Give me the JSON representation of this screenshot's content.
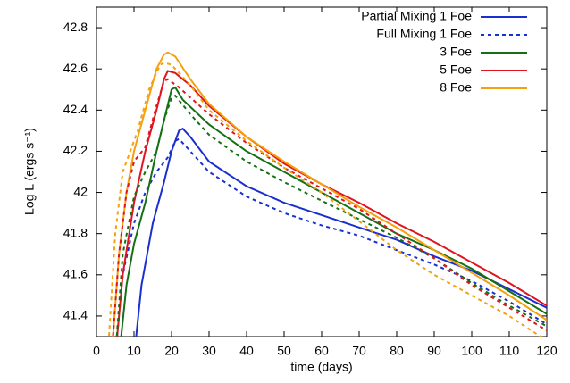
{
  "chart_data": {
    "type": "line",
    "xlabel": "time (days)",
    "ylabel": "Log L (ergs s⁻¹)",
    "xlim": [
      0,
      120
    ],
    "xticks": [
      0,
      10,
      20,
      30,
      40,
      50,
      60,
      70,
      80,
      90,
      100,
      110,
      120
    ],
    "ylim": [
      41.3,
      42.9
    ],
    "yticks": [
      41.4,
      41.6,
      41.8,
      42,
      42.2,
      42.4,
      42.6,
      42.8
    ],
    "legend": "top-right",
    "series": [
      {
        "name": "Partial Mixing 1 Foe",
        "color": "#1a2fd0",
        "dash": false,
        "x": [
          10,
          12,
          15,
          18,
          20,
          22,
          23,
          25,
          30,
          40,
          50,
          60,
          70,
          80,
          90,
          100,
          110,
          120
        ],
        "values": [
          41.2,
          41.55,
          41.85,
          42.05,
          42.2,
          42.3,
          42.31,
          42.27,
          42.15,
          42.03,
          41.95,
          41.89,
          41.83,
          41.77,
          41.69,
          41.62,
          41.53,
          41.44
        ]
      },
      {
        "name": "Full Mixing 1 Foe",
        "color": "#1a2fd0",
        "dash": true,
        "x": [
          5,
          7,
          10,
          13,
          16,
          19,
          21,
          22,
          25,
          30,
          40,
          50,
          60,
          70,
          80,
          90,
          100,
          110,
          120
        ],
        "values": [
          41.2,
          41.6,
          41.85,
          42.0,
          42.1,
          42.17,
          42.25,
          42.26,
          42.2,
          42.1,
          41.98,
          41.9,
          41.84,
          41.79,
          41.72,
          41.65,
          41.57,
          41.47,
          41.36
        ]
      },
      {
        "name": "3 Foe",
        "color": "#157015",
        "dash": false,
        "x": [
          6,
          8,
          10,
          13,
          16,
          18,
          20,
          21,
          23,
          30,
          40,
          50,
          60,
          70,
          80,
          90,
          100,
          110,
          120
        ],
        "values": [
          41.2,
          41.55,
          41.75,
          41.95,
          42.2,
          42.35,
          42.5,
          42.51,
          42.45,
          42.33,
          42.2,
          42.1,
          42.0,
          41.9,
          41.8,
          41.72,
          41.63,
          41.52,
          41.41
        ]
      },
      {
        "name": "5 Foe",
        "color": "#e0141e",
        "dash": false,
        "x": [
          5,
          7,
          10,
          13,
          16,
          18,
          19,
          21,
          25,
          30,
          40,
          50,
          60,
          70,
          80,
          90,
          100,
          110,
          120
        ],
        "values": [
          41.2,
          41.6,
          41.95,
          42.2,
          42.4,
          42.55,
          42.59,
          42.58,
          42.52,
          42.42,
          42.27,
          42.14,
          42.04,
          41.95,
          41.85,
          41.76,
          41.66,
          41.56,
          41.45
        ]
      },
      {
        "name": "8 Foe",
        "color": "#f5a10c",
        "dash": false,
        "x": [
          4,
          6,
          8,
          10,
          13,
          16,
          18,
          19,
          21,
          25,
          30,
          40,
          50,
          60,
          70,
          80,
          90,
          100,
          110,
          120
        ],
        "values": [
          41.2,
          41.7,
          42.0,
          42.2,
          42.4,
          42.6,
          42.67,
          42.68,
          42.66,
          42.55,
          42.43,
          42.27,
          42.15,
          42.04,
          41.93,
          41.83,
          41.72,
          41.61,
          41.5,
          41.38
        ]
      },
      {
        "color": "#157015",
        "dash": true,
        "x": [
          5,
          7,
          10,
          13,
          16,
          18,
          20,
          21,
          25,
          30,
          40,
          50,
          60,
          70,
          80,
          90,
          100,
          110,
          120
        ],
        "values": [
          41.2,
          41.7,
          41.98,
          42.1,
          42.2,
          42.35,
          42.46,
          42.47,
          42.38,
          42.28,
          42.15,
          42.05,
          41.96,
          41.87,
          41.78,
          41.68,
          41.56,
          41.45,
          41.35
        ]
      },
      {
        "color": "#e0141e",
        "dash": true,
        "x": [
          4,
          6,
          8,
          10,
          13,
          16,
          18,
          19,
          22,
          30,
          40,
          50,
          60,
          70,
          80,
          90,
          100,
          110,
          120
        ],
        "values": [
          41.2,
          41.7,
          42.0,
          42.15,
          42.22,
          42.42,
          42.54,
          42.55,
          42.51,
          42.38,
          42.24,
          42.12,
          42.02,
          41.92,
          41.8,
          41.68,
          41.55,
          41.44,
          41.33
        ]
      },
      {
        "color": "#f5a10c",
        "dash": true,
        "x": [
          3,
          5,
          7,
          9,
          11,
          14,
          17,
          18,
          20,
          25,
          30,
          40,
          50,
          60,
          70,
          80,
          90,
          100,
          110,
          120
        ],
        "values": [
          41.2,
          41.8,
          42.1,
          42.2,
          42.3,
          42.5,
          42.62,
          42.63,
          42.62,
          42.52,
          42.4,
          42.25,
          42.12,
          42.0,
          41.86,
          41.72,
          41.6,
          41.5,
          41.4,
          41.28
        ]
      }
    ]
  }
}
